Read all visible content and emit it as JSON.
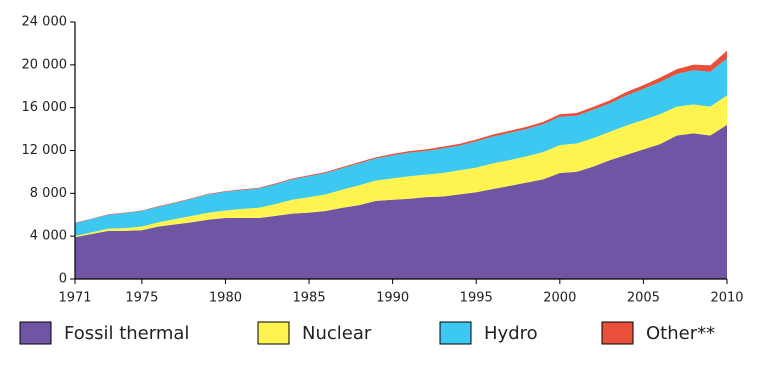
{
  "chart_data": {
    "type": "stacked_area",
    "x": [
      1971,
      1972,
      1973,
      1974,
      1975,
      1976,
      1977,
      1978,
      1979,
      1980,
      1981,
      1982,
      1983,
      1984,
      1985,
      1986,
      1987,
      1988,
      1989,
      1990,
      1991,
      1992,
      1993,
      1994,
      1995,
      1996,
      1997,
      1998,
      1999,
      2000,
      2001,
      2002,
      2003,
      2004,
      2005,
      2006,
      2007,
      2008,
      2009,
      2010
    ],
    "series": [
      {
        "name": "Fossil thermal",
        "color": "#6f55a3",
        "values": [
          3900,
          4200,
          4500,
          4500,
          4550,
          4900,
          5100,
          5300,
          5550,
          5700,
          5700,
          5700,
          5900,
          6100,
          6200,
          6350,
          6650,
          6900,
          7300,
          7400,
          7500,
          7650,
          7700,
          7900,
          8100,
          8400,
          8700,
          9000,
          9300,
          9900,
          10000,
          10500,
          11100,
          11600,
          12100,
          12600,
          13400,
          13600,
          13400,
          14400
        ]
      },
      {
        "name": "Nuclear",
        "color": "#fff44f",
        "values": [
          110,
          150,
          200,
          250,
          350,
          400,
          500,
          600,
          650,
          700,
          850,
          950,
          1100,
          1300,
          1450,
          1550,
          1700,
          1850,
          1900,
          2000,
          2100,
          2100,
          2200,
          2250,
          2300,
          2400,
          2400,
          2450,
          2550,
          2600,
          2650,
          2650,
          2650,
          2750,
          2750,
          2800,
          2700,
          2700,
          2700,
          2750
        ]
      },
      {
        "name": "Hydro",
        "color": "#3cc8f0",
        "values": [
          1200,
          1250,
          1300,
          1400,
          1450,
          1450,
          1500,
          1600,
          1700,
          1750,
          1750,
          1800,
          1850,
          1900,
          1950,
          2000,
          2000,
          2050,
          2050,
          2150,
          2200,
          2200,
          2300,
          2300,
          2450,
          2500,
          2550,
          2550,
          2600,
          2650,
          2600,
          2650,
          2650,
          2800,
          2900,
          3000,
          3050,
          3200,
          3250,
          3450
        ]
      },
      {
        "name": "Other**",
        "color": "#e8503a",
        "values": [
          40,
          42,
          44,
          46,
          48,
          50,
          52,
          54,
          56,
          60,
          65,
          70,
          75,
          82,
          90,
          97,
          105,
          112,
          120,
          130,
          140,
          150,
          160,
          170,
          180,
          190,
          200,
          210,
          220,
          230,
          250,
          270,
          290,
          320,
          350,
          400,
          450,
          520,
          600,
          720
        ]
      }
    ],
    "xlim": [
      1971,
      2010
    ],
    "xticks": [
      1971,
      1975,
      1980,
      1985,
      1990,
      1995,
      2000,
      2005,
      2010
    ],
    "ylim": [
      0,
      24000
    ],
    "yticks": [
      0,
      {
        "value": 4000,
        "label": "4 000"
      },
      {
        "value": 8000,
        "label": "8 000"
      },
      {
        "value": 12000,
        "label": "12 000"
      },
      {
        "value": 16000,
        "label": "16 000"
      },
      {
        "value": 20000,
        "label": "20 000"
      },
      {
        "value": 24000,
        "label": "24 000"
      }
    ]
  }
}
